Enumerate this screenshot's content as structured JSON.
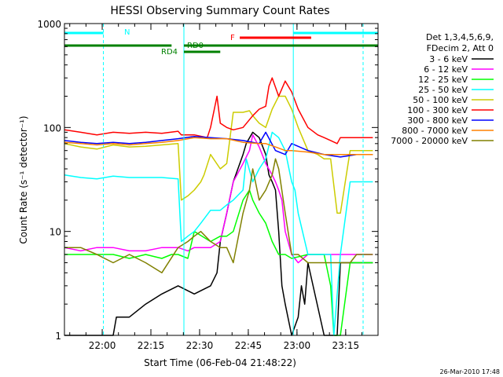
{
  "chart_data": {
    "type": "line",
    "title": "HESSI Observing Summary Count Rates",
    "xlabel": "Start Time (06-Feb-04 21:48:22)",
    "ylabel": "Count Rate (s⁻¹ detector⁻¹)",
    "yscale": "log",
    "ylim": [
      1,
      1000
    ],
    "xlim": [
      "21:48:22",
      "23:25:00"
    ],
    "x_ticks": [
      "22:00",
      "22:15",
      "22:30",
      "22:45",
      "23:00",
      "23:15"
    ],
    "y_ticks": [
      "1",
      "10",
      "100",
      "1000"
    ],
    "timestamp": "26-Mar-2010 17:48",
    "legend_header": [
      "Det 1,3,4,5,6,9,",
      "FDecim 2, Att 0"
    ],
    "legend_position": "right",
    "grid": false,
    "x_units": "minutes since 21:48:22",
    "series": [
      {
        "name": "3 - 6 keV",
        "color": "#000000",
        "x": [
          0,
          15,
          16,
          20,
          25,
          30,
          35,
          40,
          45,
          47,
          48,
          50,
          52,
          55,
          56,
          58,
          60,
          62,
          63,
          64,
          65,
          66,
          67,
          68,
          70,
          72,
          73,
          74,
          75,
          80,
          82,
          84,
          85,
          90,
          95
        ],
        "y": [
          1,
          1,
          1.5,
          1.5,
          2,
          2.5,
          3,
          2.5,
          3,
          4,
          8,
          15,
          30,
          55,
          70,
          90,
          80,
          55,
          35,
          30,
          25,
          10,
          3,
          2,
          1,
          1.5,
          3,
          2,
          5,
          1,
          1,
          1,
          5,
          5,
          5
        ]
      },
      {
        "name": "6 - 12 keV",
        "color": "#ff00ff",
        "x": [
          0,
          5,
          10,
          15,
          20,
          25,
          30,
          33,
          35,
          38,
          40,
          42,
          45,
          48,
          50,
          52,
          55,
          57,
          58,
          60,
          62,
          64,
          65,
          66,
          67,
          68,
          70,
          72,
          75,
          80,
          85,
          90,
          95
        ],
        "y": [
          7,
          6.5,
          7,
          7,
          6.5,
          6.5,
          7,
          7,
          7,
          6.5,
          7,
          7,
          7,
          8,
          15,
          30,
          45,
          60,
          85,
          65,
          45,
          35,
          30,
          25,
          20,
          10,
          6,
          5,
          6,
          6,
          6,
          6,
          6
        ]
      },
      {
        "name": "12 - 25 keV",
        "color": "#00ff00",
        "x": [
          0,
          5,
          10,
          15,
          20,
          25,
          30,
          33,
          35,
          38,
          40,
          45,
          48,
          50,
          52,
          55,
          57,
          58,
          60,
          62,
          64,
          66,
          68,
          70,
          75,
          80,
          82,
          83,
          85,
          88,
          90,
          95
        ],
        "y": [
          6,
          6,
          6,
          6,
          5.5,
          6,
          5.5,
          6,
          6,
          5.5,
          10,
          8,
          9,
          9,
          10,
          20,
          25,
          20,
          15,
          12,
          8,
          6,
          6,
          5.5,
          6,
          6,
          3,
          1,
          1,
          5,
          5,
          5
        ]
      },
      {
        "name": "25 - 50 keV",
        "color": "#00ffff",
        "x": [
          0,
          5,
          10,
          15,
          20,
          25,
          30,
          35,
          36,
          38,
          40,
          42,
          45,
          48,
          50,
          52,
          55,
          56,
          58,
          60,
          62,
          64,
          66,
          68,
          70,
          71,
          72,
          75,
          78,
          80,
          82,
          83,
          85,
          88,
          90,
          95
        ],
        "y": [
          35,
          33,
          32,
          34,
          33,
          33,
          33,
          32,
          8,
          9,
          10,
          12,
          16,
          16,
          18,
          20,
          25,
          50,
          30,
          40,
          50,
          90,
          80,
          60,
          30,
          25,
          15,
          6,
          6,
          6,
          6,
          1,
          6,
          30,
          30,
          30
        ]
      },
      {
        "name": "50 - 100 keV",
        "color": "#cccc00",
        "x": [
          0,
          5,
          10,
          15,
          20,
          25,
          30,
          35,
          36,
          38,
          40,
          42,
          43,
          45,
          48,
          50,
          52,
          55,
          57,
          58,
          60,
          62,
          64,
          66,
          68,
          70,
          72,
          75,
          78,
          80,
          82,
          84,
          85,
          88,
          90,
          95
        ],
        "y": [
          70,
          65,
          62,
          68,
          65,
          66,
          68,
          70,
          20,
          22,
          25,
          30,
          35,
          55,
          40,
          45,
          140,
          140,
          145,
          130,
          110,
          100,
          150,
          200,
          200,
          150,
          100,
          60,
          55,
          50,
          50,
          15,
          15,
          60,
          60,
          60
        ]
      },
      {
        "name": "100 - 300 keV",
        "color": "#ff0000",
        "x": [
          0,
          5,
          10,
          15,
          20,
          25,
          30,
          35,
          36,
          40,
          44,
          45,
          47,
          48,
          50,
          52,
          55,
          58,
          60,
          62,
          63,
          64,
          66,
          68,
          70,
          72,
          75,
          78,
          80,
          82,
          84,
          85,
          88,
          90,
          95
        ],
        "y": [
          95,
          90,
          85,
          90,
          88,
          90,
          88,
          92,
          85,
          85,
          80,
          100,
          200,
          110,
          100,
          95,
          100,
          130,
          150,
          160,
          250,
          300,
          200,
          280,
          220,
          150,
          100,
          85,
          80,
          75,
          70,
          80,
          80,
          80,
          80
        ]
      },
      {
        "name": "300 - 800 keV",
        "color": "#0000ff",
        "x": [
          0,
          5,
          10,
          15,
          20,
          25,
          30,
          35,
          40,
          45,
          50,
          55,
          60,
          62,
          65,
          68,
          70,
          75,
          80,
          85,
          90,
          95
        ],
        "y": [
          75,
          72,
          70,
          72,
          70,
          72,
          75,
          78,
          82,
          80,
          78,
          75,
          70,
          90,
          60,
          55,
          70,
          60,
          55,
          52,
          55,
          55
        ]
      },
      {
        "name": "800 - 7000 keV",
        "color": "#ff8000",
        "x": [
          0,
          5,
          10,
          15,
          20,
          25,
          30,
          35,
          40,
          45,
          50,
          55,
          60,
          62,
          65,
          68,
          70,
          75,
          80,
          85,
          90,
          95
        ],
        "y": [
          72,
          70,
          68,
          70,
          68,
          70,
          72,
          75,
          80,
          78,
          78,
          72,
          70,
          70,
          65,
          60,
          60,
          58,
          55,
          55,
          55,
          55
        ]
      },
      {
        "name": "7000 - 20000 keV",
        "color": "#808000",
        "x": [
          0,
          5,
          10,
          15,
          20,
          25,
          30,
          35,
          38,
          40,
          42,
          45,
          48,
          50,
          52,
          55,
          57,
          58,
          60,
          62,
          64,
          65,
          66,
          68,
          70,
          72,
          75,
          80,
          85,
          88,
          90,
          95
        ],
        "y": [
          7,
          7,
          6,
          5,
          6,
          5,
          4,
          7,
          8,
          9,
          10,
          8,
          7,
          7,
          5,
          15,
          25,
          40,
          20,
          25,
          35,
          50,
          40,
          15,
          6,
          6,
          5,
          5,
          5,
          5,
          6,
          6
        ]
      }
    ],
    "segment_labels": [
      {
        "text": "N",
        "color": "#00ffff"
      },
      {
        "text": "F",
        "color": "#ff0000"
      },
      {
        "text": "RD0",
        "color": "#008000"
      },
      {
        "text": "RD4",
        "color": "#008000"
      }
    ]
  },
  "colors": {
    "night": "#00ffff",
    "flare": "#ff0000",
    "rd": "#008000"
  }
}
